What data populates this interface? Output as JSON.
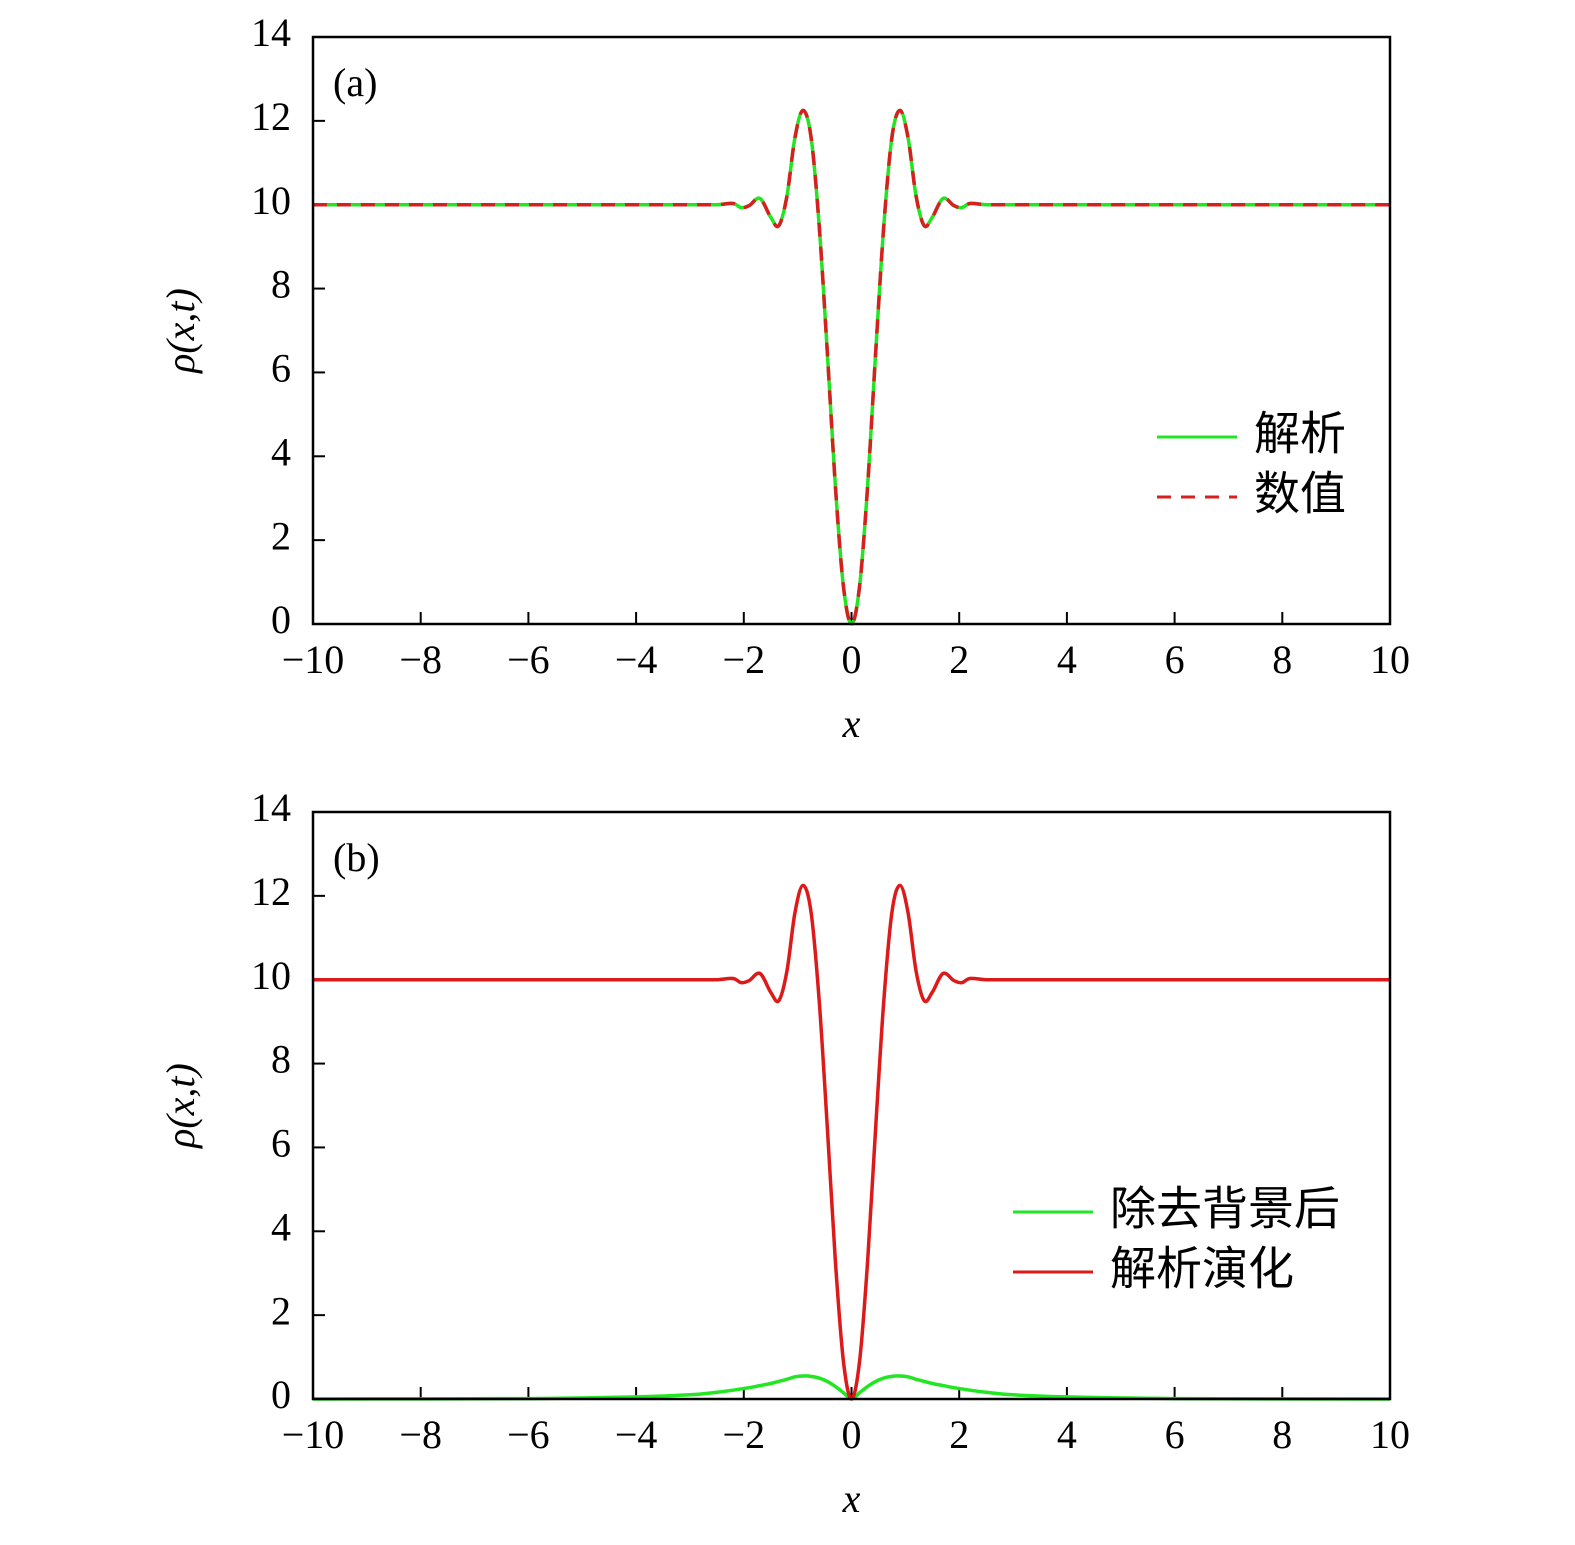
{
  "chart_data": [
    {
      "type": "line",
      "label": "(a)",
      "xlabel": "x",
      "ylabel": "ρ(x,t)",
      "x": [
        -10,
        -6,
        -4,
        -3,
        -2.5,
        -2.2,
        -2.05,
        -1.9,
        -1.7,
        -1.5,
        -1.35,
        -1.2,
        -1.05,
        -0.9,
        -0.75,
        -0.6,
        -0.45,
        -0.3,
        -0.15,
        0,
        0.15,
        0.3,
        0.45,
        0.6,
        0.75,
        0.9,
        1.05,
        1.2,
        1.35,
        1.5,
        1.7,
        1.9,
        2.05,
        2.2,
        2.5,
        3,
        4,
        6,
        10
      ],
      "series": [
        {
          "name": "解析",
          "color": "#22e622",
          "dashed": false,
          "values": [
            10,
            10,
            10,
            10,
            10,
            10.03,
            9.93,
            9.98,
            10.15,
            9.7,
            9.5,
            10.2,
            11.6,
            12.25,
            11.6,
            9.5,
            6.5,
            3.3,
            0.9,
            0,
            0.9,
            3.3,
            6.5,
            9.5,
            11.6,
            12.25,
            11.6,
            10.2,
            9.5,
            9.7,
            10.15,
            9.98,
            9.93,
            10.03,
            10,
            10,
            10,
            10,
            10
          ]
        },
        {
          "name": "数值",
          "color": "#d62020",
          "dashed": true,
          "values": [
            10,
            10,
            10,
            10,
            10,
            10.03,
            9.93,
            9.98,
            10.15,
            9.7,
            9.5,
            10.2,
            11.6,
            12.25,
            11.6,
            9.5,
            6.5,
            3.3,
            0.9,
            0,
            0.9,
            3.3,
            6.5,
            9.5,
            11.6,
            12.25,
            11.6,
            10.2,
            9.5,
            9.7,
            10.15,
            9.98,
            9.93,
            10.03,
            10,
            10,
            10,
            10,
            10
          ]
        }
      ],
      "xlim": [
        -10,
        10
      ],
      "xticks": [
        {
          "value": -10,
          "label": "−10"
        },
        {
          "value": -8,
          "label": "−8"
        },
        {
          "value": -6,
          "label": "−6"
        },
        {
          "value": -4,
          "label": "−4"
        },
        {
          "value": -2,
          "label": "−2"
        },
        0,
        2,
        4,
        6,
        8,
        10
      ],
      "ylim": [
        0,
        14
      ],
      "yticks": [
        0,
        2,
        4,
        6,
        8,
        10,
        12,
        14
      ],
      "legend": "lower right"
    },
    {
      "type": "line",
      "label": "(b)",
      "xlabel": "x",
      "ylabel": "ρ(x,t)",
      "x": [
        -10,
        -6,
        -4,
        -3,
        -2.5,
        -2.2,
        -2.05,
        -1.9,
        -1.7,
        -1.5,
        -1.35,
        -1.2,
        -1.05,
        -0.9,
        -0.75,
        -0.6,
        -0.45,
        -0.3,
        -0.15,
        0,
        0.15,
        0.3,
        0.45,
        0.6,
        0.75,
        0.9,
        1.05,
        1.2,
        1.35,
        1.5,
        1.7,
        1.9,
        2.05,
        2.2,
        2.5,
        3,
        4,
        6,
        10
      ],
      "series": [
        {
          "name": "除去背景后",
          "color": "#22e622",
          "dashed": false,
          "values": [
            0,
            0.01,
            0.05,
            0.1,
            0.16,
            0.21,
            0.24,
            0.27,
            0.32,
            0.37,
            0.42,
            0.47,
            0.53,
            0.55,
            0.54,
            0.5,
            0.42,
            0.3,
            0.15,
            0,
            0.15,
            0.3,
            0.42,
            0.5,
            0.54,
            0.55,
            0.53,
            0.47,
            0.42,
            0.37,
            0.32,
            0.27,
            0.24,
            0.21,
            0.16,
            0.1,
            0.05,
            0.01,
            0
          ]
        },
        {
          "name": "解析演化",
          "color": "#dd1a1a",
          "dashed": false,
          "values": [
            10,
            10,
            10,
            10,
            10,
            10.03,
            9.93,
            9.98,
            10.15,
            9.7,
            9.5,
            10.2,
            11.6,
            12.25,
            11.6,
            9.5,
            6.5,
            3.3,
            0.9,
            0,
            0.9,
            3.3,
            6.5,
            9.5,
            11.6,
            12.25,
            11.6,
            10.2,
            9.5,
            9.7,
            10.15,
            9.98,
            9.93,
            10.03,
            10,
            10,
            10,
            10,
            10
          ]
        }
      ],
      "xlim": [
        -10,
        10
      ],
      "xticks": [
        {
          "value": -10,
          "label": "−10"
        },
        {
          "value": -8,
          "label": "−8"
        },
        {
          "value": -6,
          "label": "−6"
        },
        {
          "value": -4,
          "label": "−4"
        },
        {
          "value": -2,
          "label": "−2"
        },
        0,
        2,
        4,
        6,
        8,
        10
      ],
      "ylim": [
        0,
        14
      ],
      "yticks": [
        0,
        2,
        4,
        6,
        8,
        10,
        12,
        14
      ],
      "legend": "lower right"
    }
  ]
}
